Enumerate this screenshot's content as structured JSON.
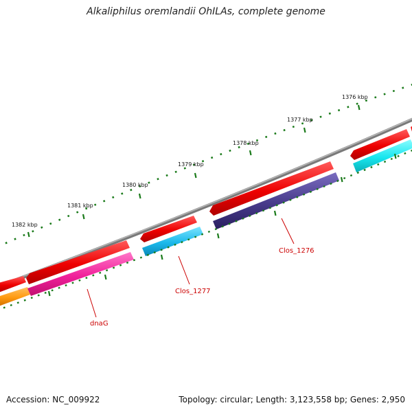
{
  "title": "Alkaliphilus oremlandii OhILAs, complete genome",
  "footer": {
    "accession": "Accession: NC_009922",
    "summary": "Topology: circular; Length: 3,123,558 bp; Genes: 2,950"
  },
  "scale_ticks": [
    "1376 kbp",
    "1377 kbp",
    "1378 kbp",
    "1379 kbp",
    "1380 kbp",
    "1381 kbp",
    "1382 kbp"
  ],
  "genes": [
    {
      "label": "dnaG",
      "color": "#ff2aa0"
    },
    {
      "label": "Clos_1277",
      "color": "#22c4ee"
    },
    {
      "label": "Clos_1276",
      "color": "#4a3d8c"
    }
  ],
  "colors": {
    "backbone": "#808080",
    "forward_strand": "#ff0000",
    "reverse_other": "#ff9a1a",
    "reverse_cyan": "#22eef2",
    "tick": "#1a7a1a",
    "label": "#cc0000"
  }
}
